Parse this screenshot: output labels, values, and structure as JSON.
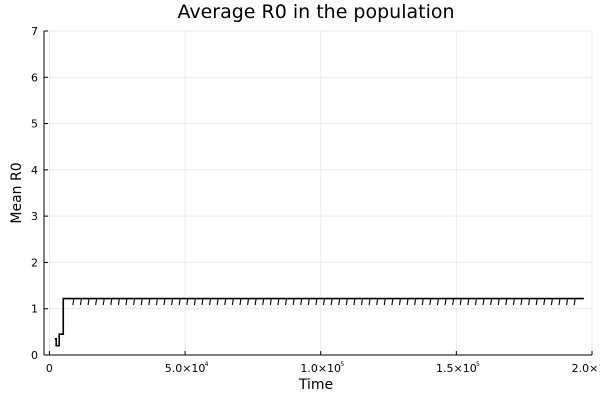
{
  "chart_data": {
    "type": "line",
    "title": "Average R0 in the population",
    "xlabel": "Time",
    "ylabel": "Mean R0",
    "xlim": [
      -2000,
      200000
    ],
    "ylim": [
      0,
      7
    ],
    "grid": true,
    "legend": "none",
    "xticks": [
      {
        "value": 0,
        "mantissa": "0",
        "exp": ""
      },
      {
        "value": 50000,
        "mantissa": "5.0×10",
        "exp": "4"
      },
      {
        "value": 100000,
        "mantissa": "1.0×10",
        "exp": "5"
      },
      {
        "value": 150000,
        "mantissa": "1.5×10",
        "exp": "5"
      },
      {
        "value": 200000,
        "mantissa": "2.0×10",
        "exp": "5"
      }
    ],
    "yticks": [
      0,
      1,
      2,
      3,
      4,
      5,
      6,
      7
    ],
    "series": [
      {
        "step": true,
        "color": "#000000",
        "points": [
          [
            2000,
            0.35
          ],
          [
            2500,
            0.2
          ],
          [
            3200,
            0.2
          ],
          [
            3600,
            0.45
          ],
          [
            4500,
            0.45
          ],
          [
            5100,
            1.22
          ],
          [
            197000,
            1.22
          ]
        ],
        "dips": {
          "start": 9000,
          "end": 196000,
          "every": 2800,
          "low": 1.08
        }
      }
    ]
  }
}
